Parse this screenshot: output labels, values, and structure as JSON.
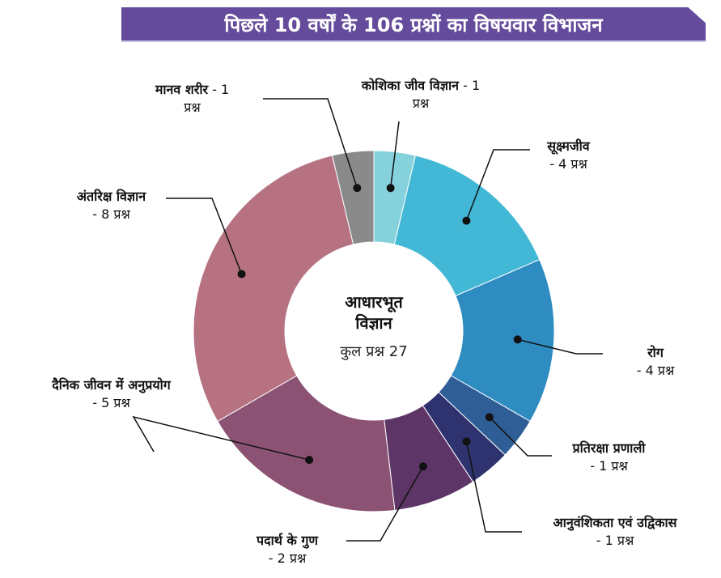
{
  "title": "पिछले 10 वर्षों के 106 प्रश्नों का विषयवार विभाजन",
  "center": {
    "line1": "आधारभूत",
    "line2": "विज्ञान",
    "total": "कुल प्रश्न 27"
  },
  "chart_data": {
    "type": "pie",
    "title": "पिछले 10 वर्षों के 106 प्रश्नों का विषयवार विभाजन",
    "donut": true,
    "total": 27,
    "slices": [
      {
        "name": "कोशिका जीव विज्ञान",
        "value": 1,
        "label": "- 1 प्रश्न",
        "color": "#86d2dc"
      },
      {
        "name": "सूक्ष्मजीव",
        "value": 4,
        "label": "- 4 प्रश्न",
        "color": "#42b8d6"
      },
      {
        "name": "रोग",
        "value": 4,
        "label": "- 4 प्रश्न",
        "color": "#2f8cc1"
      },
      {
        "name": "प्रतिरक्षा प्रणाली",
        "value": 1,
        "label": "- 1 प्रश्न",
        "color": "#2f5e97"
      },
      {
        "name": "आनुवंशिकता एवं उद्विकास",
        "value": 1,
        "label": "- 1 प्रश्न",
        "color": "#2e3370"
      },
      {
        "name": "पदार्थ के गुण",
        "value": 2,
        "label": "- 2 प्रश्न",
        "color": "#5d3566"
      },
      {
        "name": "दैनिक जीवन में अनुप्रयोग",
        "value": 5,
        "label": "- 5 प्रश्न",
        "color": "#8c5274"
      },
      {
        "name": "अंतरिक्ष विज्ञान",
        "value": 8,
        "label": "- 8 प्रश्न",
        "color": "#b77282"
      },
      {
        "name": "मानव शरीर",
        "value": 1,
        "label": "- 1 प्रश्न",
        "color": "#8a8a8a"
      }
    ]
  }
}
